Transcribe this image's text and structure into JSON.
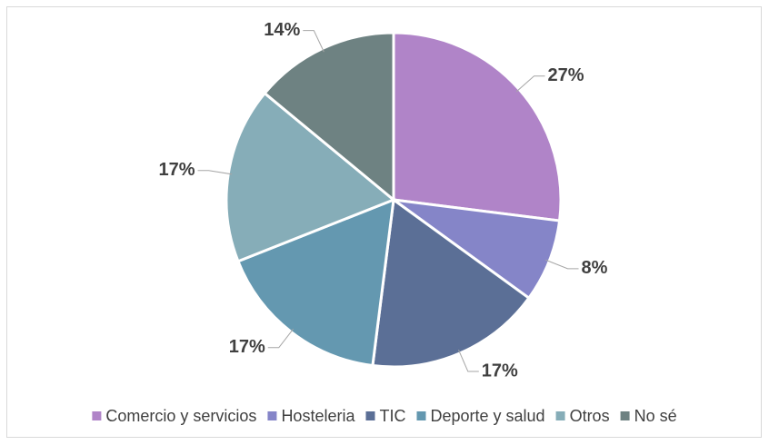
{
  "chart_data": {
    "type": "pie",
    "categories": [
      "Comercio y servicios",
      "Hosteleria",
      "TIC",
      "Deporte y salud",
      "Otros",
      "No sé"
    ],
    "values": [
      27,
      8,
      17,
      17,
      17,
      14
    ],
    "value_labels": [
      "27%",
      "8%",
      "17%",
      "17%",
      "17%",
      "14%"
    ],
    "colors": [
      "#b084c8",
      "#8585c8",
      "#5b6f96",
      "#6498b0",
      "#86adb8",
      "#6e8282"
    ],
    "legend": "bottom"
  }
}
